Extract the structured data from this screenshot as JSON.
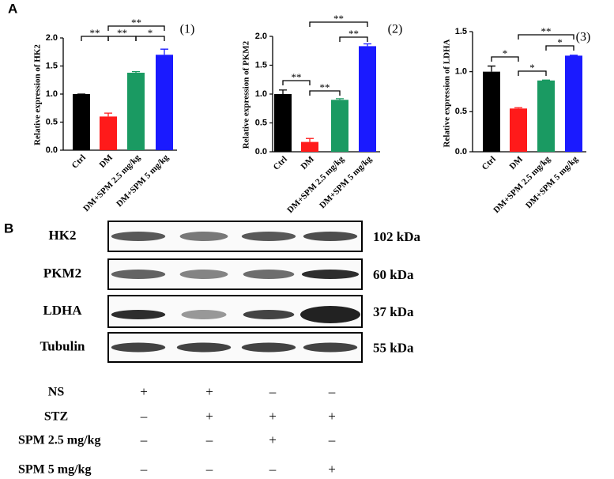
{
  "panels": [
    "A",
    "B"
  ],
  "chart_data": [
    {
      "type": "bar",
      "number": "(1)",
      "ylabel": "Relative expression of HK2",
      "categories": [
        "Ctrl",
        "DM",
        "DM+SPM 2.5 mg/kg",
        "DM+SPM 5 mg/kg"
      ],
      "values": [
        1.0,
        0.6,
        1.38,
        1.7
      ],
      "errors": [
        0.0,
        0.06,
        0.02,
        0.1
      ],
      "colors": [
        "#000000",
        "#ff1a1a",
        "#1a9a62",
        "#1a1aff"
      ],
      "ylim": [
        0,
        2.0
      ],
      "yticks": [
        {
          "value": 0,
          "label": "0.0"
        },
        0.5,
        {
          "value": 1,
          "label": "1.0"
        },
        1.5,
        {
          "value": 2,
          "label": "2.0"
        }
      ],
      "annotations": [
        "**",
        "**",
        "**",
        "*"
      ]
    },
    {
      "type": "bar",
      "number": "(2)",
      "ylabel": "Relative  expression of PKM2",
      "categories": [
        "Ctrl",
        "DM",
        "DM+SPM 2.5 mg/kg",
        "DM+SPM 5 mg/kg"
      ],
      "values": [
        1.0,
        0.17,
        0.9,
        1.83
      ],
      "errors": [
        0.07,
        0.06,
        0.02,
        0.04
      ],
      "colors": [
        "#000000",
        "#ff1a1a",
        "#1a9a62",
        "#1a1aff"
      ],
      "ylim": [
        0,
        2.0
      ],
      "yticks": [
        {
          "value": 0,
          "label": "0.0"
        },
        0.5,
        {
          "value": 1,
          "label": "1.0"
        },
        1.5,
        {
          "value": 2,
          "label": "2.0"
        }
      ],
      "annotations": [
        "**",
        "**",
        "**",
        "**"
      ]
    },
    {
      "type": "bar",
      "number": "(3)",
      "ylabel": "Relative  expression of LDHA",
      "categories": [
        "Ctrl",
        "DM",
        "DM+SPM 2.5 mg/kg",
        "DM+SPM 5 mg/kg"
      ],
      "values": [
        1.0,
        0.54,
        0.89,
        1.2
      ],
      "errors": [
        0.07,
        0.01,
        0.005,
        0.005
      ],
      "colors": [
        "#000000",
        "#ff1a1a",
        "#1a9a62",
        "#1a1aff"
      ],
      "ylim": [
        0,
        1.5
      ],
      "yticks": [
        {
          "value": 0,
          "label": "0.0"
        },
        0.5,
        {
          "value": 1,
          "label": "1.0"
        },
        1.5
      ],
      "annotations": [
        "*",
        "**",
        "*",
        "*"
      ]
    }
  ],
  "blot": {
    "rows": [
      {
        "protein": "HK2",
        "size": "102 kDa"
      },
      {
        "protein": "PKM2",
        "size": "60 kDa"
      },
      {
        "protein": "LDHA",
        "size": "37 kDa"
      },
      {
        "protein": "Tubulin",
        "size": "55 kDa"
      }
    ]
  },
  "treatments": [
    {
      "label": "NS",
      "signs": [
        "+",
        "+",
        "–",
        "–"
      ]
    },
    {
      "label": "STZ",
      "signs": [
        "–",
        "+",
        "+",
        "+"
      ]
    },
    {
      "label": "SPM 2.5 mg/kg",
      "signs": [
        "–",
        "–",
        "+",
        "–"
      ]
    },
    {
      "label": "SPM 5 mg/kg",
      "signs": [
        "–",
        "–",
        "–",
        "+"
      ]
    }
  ]
}
